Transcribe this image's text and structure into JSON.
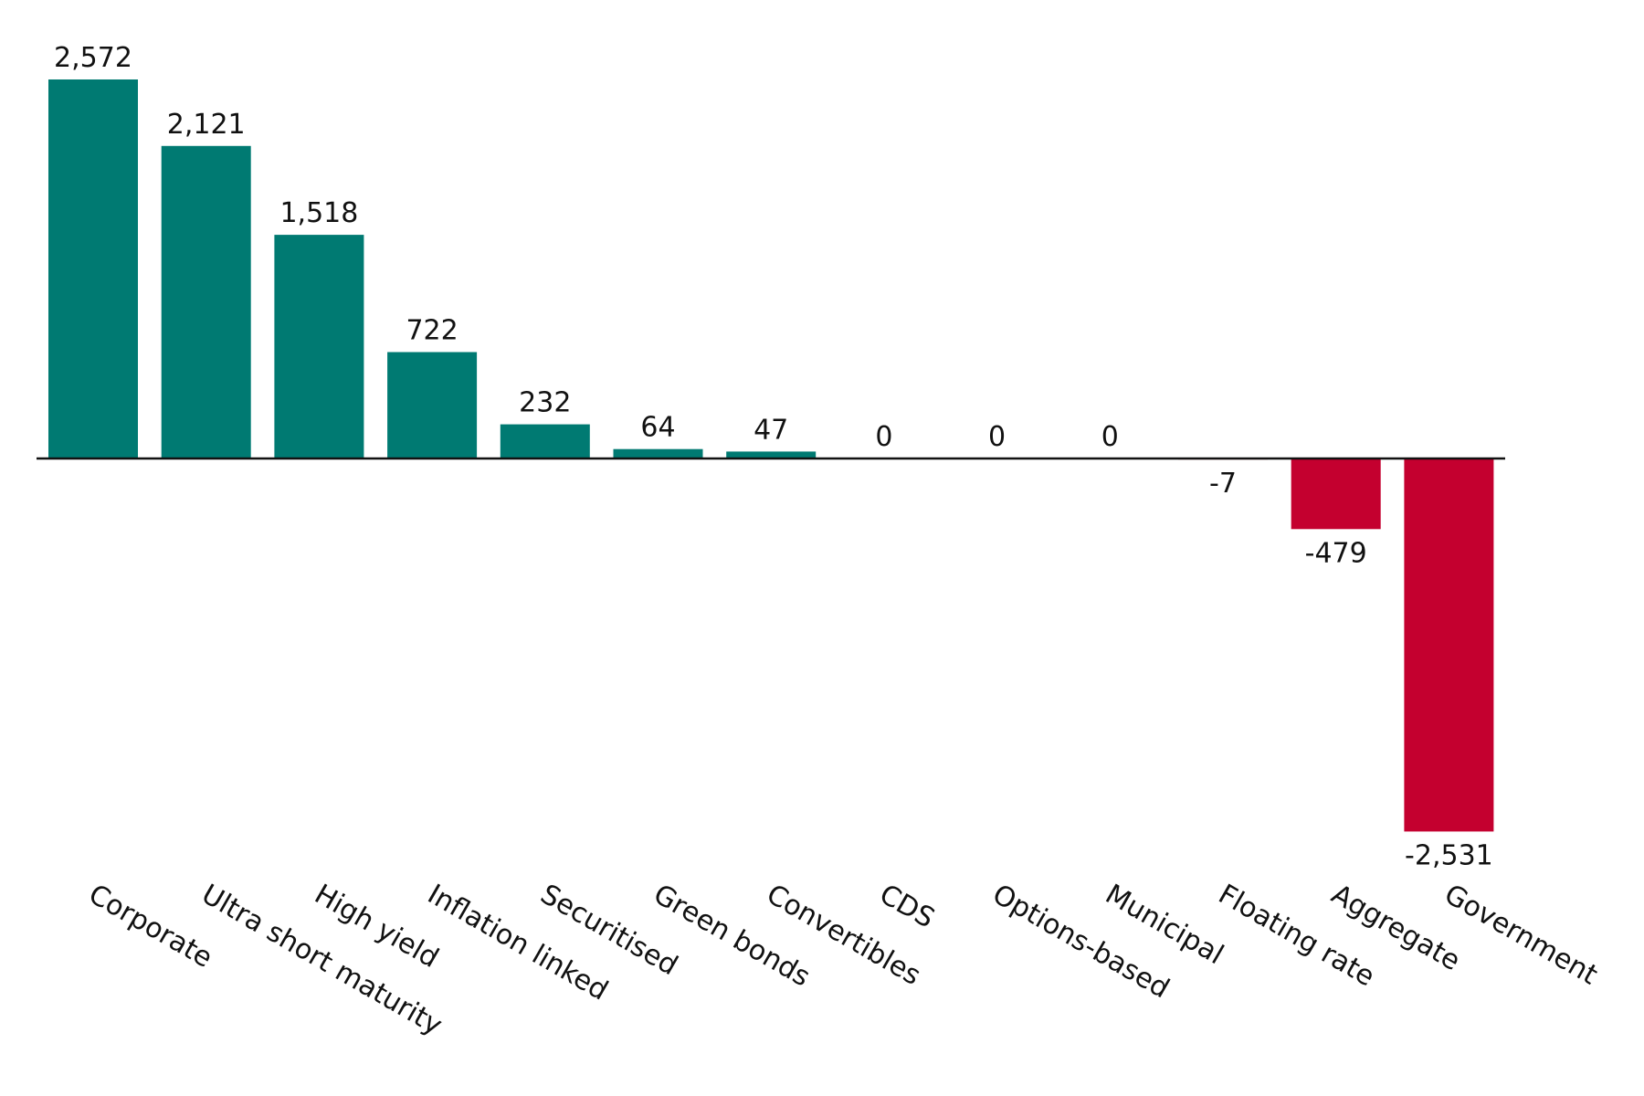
{
  "chart_data": {
    "type": "bar",
    "title": "",
    "xlabel": "",
    "ylabel": "",
    "categories": [
      "Corporate",
      "Ultra short maturity",
      "High yield",
      "Inflation linked",
      "Securitised",
      "Green bonds",
      "Convertibles",
      "CDS",
      "Options-based",
      "Municipal",
      "Floating rate",
      "Aggregate",
      "Government"
    ],
    "values": [
      2572,
      2121,
      1518,
      722,
      232,
      64,
      47,
      0,
      0,
      0,
      -7,
      -479,
      -2531
    ],
    "value_labels": [
      "2,572",
      "2,121",
      "1,518",
      "722",
      "232",
      "64",
      "47",
      "0",
      "0",
      "0",
      "-7",
      "-479",
      "-2,531"
    ],
    "ylim": [
      -2531,
      2572
    ],
    "grid": false,
    "colors": {
      "positive": "#007A72",
      "negative": "#C4002F",
      "baseline": "#111111"
    }
  }
}
